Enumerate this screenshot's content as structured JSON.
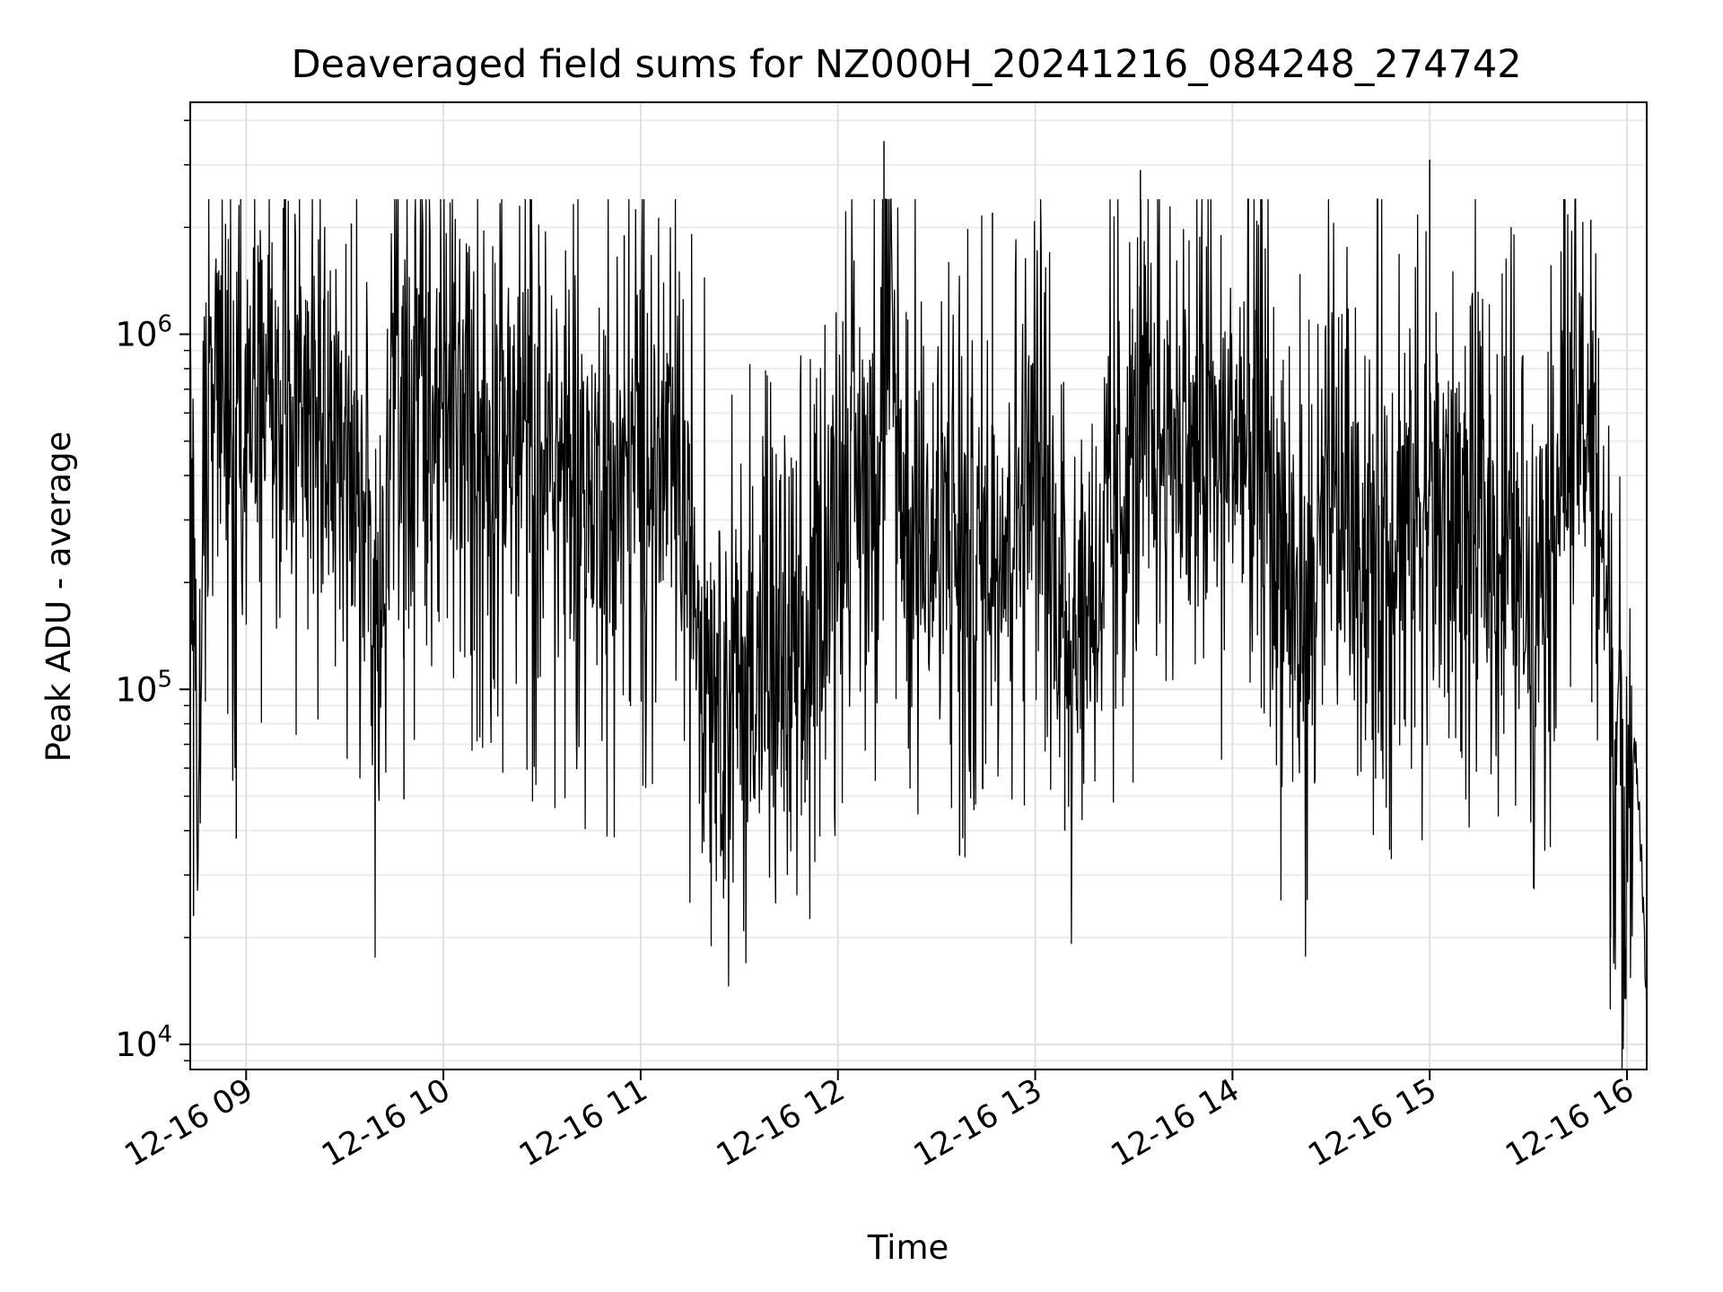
{
  "chart_data": {
    "type": "line",
    "title": "Deaveraged field sums for NZ000H_20241216_084248_274742",
    "xlabel": "Time",
    "ylabel": "Peak ADU - average",
    "yscale": "log",
    "grid": true,
    "legend": "none",
    "xlim": [
      "2024-12-16 08:43",
      "2024-12-16 16:06"
    ],
    "ylim": [
      8500,
      4500000
    ],
    "x_ticks": [
      {
        "label": "12-16 09",
        "value": "2024-12-16 09:00"
      },
      {
        "label": "12-16 10",
        "value": "2024-12-16 10:00"
      },
      {
        "label": "12-16 11",
        "value": "2024-12-16 11:00"
      },
      {
        "label": "12-16 12",
        "value": "2024-12-16 12:00"
      },
      {
        "label": "12-16 13",
        "value": "2024-12-16 13:00"
      },
      {
        "label": "12-16 14",
        "value": "2024-12-16 14:00"
      },
      {
        "label": "12-16 15",
        "value": "2024-12-16 15:00"
      },
      {
        "label": "12-16 16",
        "value": "2024-12-16 16:00"
      }
    ],
    "y_ticks": [
      {
        "base": "10",
        "exp": "4",
        "value": 10000
      },
      {
        "base": "10",
        "exp": "5",
        "value": 100000
      },
      {
        "base": "10",
        "exp": "6",
        "value": 1000000
      }
    ],
    "series": [
      {
        "color": "#000000",
        "x": [
          "2024-12-16 08:43",
          "2024-12-16 08:45",
          "2024-12-16 08:46",
          "2024-12-16 08:48",
          "2024-12-16 08:50",
          "2024-12-16 08:53",
          "2024-12-16 08:56",
          "2024-12-16 08:58",
          "2024-12-16 09:00",
          "2024-12-16 09:05",
          "2024-12-16 09:10",
          "2024-12-16 09:15",
          "2024-12-16 09:20",
          "2024-12-16 09:25",
          "2024-12-16 09:30",
          "2024-12-16 09:35",
          "2024-12-16 09:40",
          "2024-12-16 09:45",
          "2024-12-16 09:50",
          "2024-12-16 09:55",
          "2024-12-16 10:00",
          "2024-12-16 10:10",
          "2024-12-16 10:20",
          "2024-12-16 10:30",
          "2024-12-16 10:40",
          "2024-12-16 10:50",
          "2024-12-16 11:00",
          "2024-12-16 11:10",
          "2024-12-16 11:20",
          "2024-12-16 11:30",
          "2024-12-16 11:40",
          "2024-12-16 11:50",
          "2024-12-16 12:00",
          "2024-12-16 12:10",
          "2024-12-16 12:15",
          "2024-12-16 12:20",
          "2024-12-16 12:30",
          "2024-12-16 12:35",
          "2024-12-16 12:40",
          "2024-12-16 12:50",
          "2024-12-16 13:00",
          "2024-12-16 13:05",
          "2024-12-16 13:10",
          "2024-12-16 13:20",
          "2024-12-16 13:30",
          "2024-12-16 13:40",
          "2024-12-16 13:50",
          "2024-12-16 14:00",
          "2024-12-16 14:10",
          "2024-12-16 14:20",
          "2024-12-16 14:30",
          "2024-12-16 14:40",
          "2024-12-16 14:50",
          "2024-12-16 15:00",
          "2024-12-16 15:10",
          "2024-12-16 15:20",
          "2024-12-16 15:30",
          "2024-12-16 15:38",
          "2024-12-16 15:45",
          "2024-12-16 15:50",
          "2024-12-16 15:53",
          "2024-12-16 15:56",
          "2024-12-16 15:59",
          "2024-12-16 16:01",
          "2024-12-16 16:03",
          "2024-12-16 16:05",
          "2024-12-16 16:06"
        ],
        "y": [
          700000,
          35000,
          150000,
          650000,
          700000,
          620000,
          250000,
          700000,
          650000,
          800000,
          750000,
          500000,
          700000,
          600000,
          400000,
          300000,
          120000,
          600000,
          700000,
          550000,
          600000,
          550000,
          500000,
          450000,
          400000,
          350000,
          450000,
          400000,
          150000,
          100000,
          120000,
          100000,
          350000,
          400000,
          1000000,
          300000,
          250000,
          300000,
          200000,
          300000,
          450000,
          250000,
          150000,
          200000,
          500000,
          500000,
          450000,
          500000,
          400000,
          150000,
          300000,
          250000,
          300000,
          350000,
          300000,
          250000,
          200000,
          350000,
          600000,
          550000,
          220000,
          80000,
          55000,
          70000,
          60000,
          25000,
          11000
        ],
        "peaks": [
          {
            "x": "2024-12-16 12:14",
            "y": 3500000
          },
          {
            "x": "2024-12-16 13:32",
            "y": 2900000
          },
          {
            "x": "2024-12-16 15:00",
            "y": 3100000
          },
          {
            "x": "2024-12-16 12:47",
            "y": 2200000
          },
          {
            "x": "2024-12-16 15:49",
            "y": 2100000
          },
          {
            "x": "2024-12-16 09:32",
            "y": 2050000
          },
          {
            "x": "2024-12-16 10:55",
            "y": 1900000
          },
          {
            "x": "2024-12-16 09:22",
            "y": 1850000
          },
          {
            "x": "2024-12-16 15:41",
            "y": 1750000
          }
        ],
        "troughs": [
          {
            "x": "2024-12-16 08:44",
            "y": 23000
          },
          {
            "x": "2024-12-16 08:57",
            "y": 38000
          },
          {
            "x": "2024-12-16 12:37",
            "y": 34000
          },
          {
            "x": "2024-12-16 13:09",
            "y": 40000
          },
          {
            "x": "2024-12-16 15:55",
            "y": 20000
          },
          {
            "x": "2024-12-16 11:50",
            "y": 48000
          },
          {
            "x": "2024-12-16 09:48",
            "y": 49000
          }
        ]
      }
    ]
  }
}
